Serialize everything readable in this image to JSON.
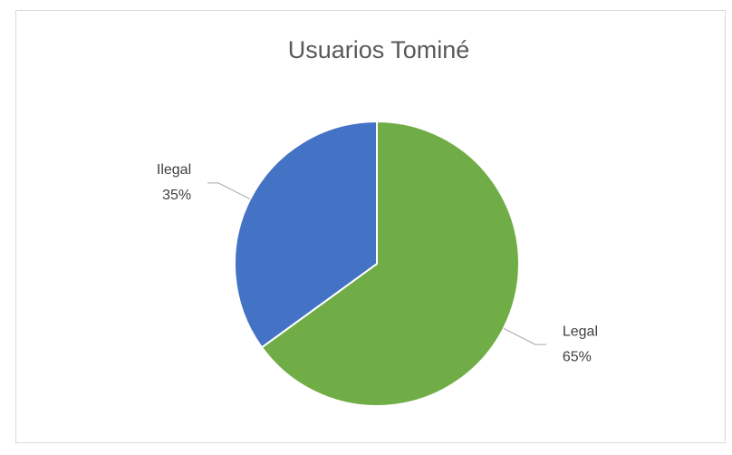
{
  "chart_data": {
    "type": "pie",
    "title": "Usuarios Tominé",
    "categories": [
      "Legal",
      "Ilegal"
    ],
    "values": [
      65,
      35
    ],
    "value_labels": [
      "65%",
      "35%"
    ],
    "colors": [
      "#70ad47",
      "#4472c4"
    ]
  }
}
